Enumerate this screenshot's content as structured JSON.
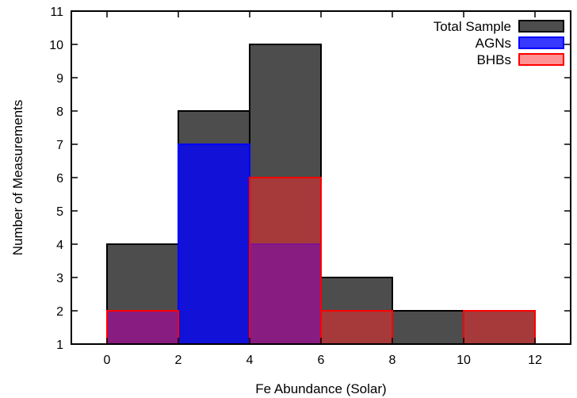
{
  "chart_data": {
    "type": "bar",
    "title": "",
    "xlabel": "Fe Abundance (Solar)",
    "ylabel": "Number of Measurements",
    "xlim": [
      -1,
      13
    ],
    "ylim": [
      1,
      11
    ],
    "xticks": [
      0,
      2,
      4,
      6,
      8,
      10,
      12
    ],
    "yticks": [
      1,
      2,
      3,
      4,
      5,
      6,
      7,
      8,
      9,
      10,
      11
    ],
    "grid": false,
    "legend_position": "top-right",
    "bin_edges": [
      0,
      2,
      4,
      6,
      8,
      10,
      12
    ],
    "series": [
      {
        "name": "Total Sample",
        "fill": "#4d4d4d",
        "stroke": "#000000",
        "bins": [
          {
            "x0": 0,
            "x1": 2,
            "value": 4
          },
          {
            "x0": 2,
            "x1": 4,
            "value": 8
          },
          {
            "x0": 4,
            "x1": 6,
            "value": 10
          },
          {
            "x0": 6,
            "x1": 8,
            "value": 3
          },
          {
            "x0": 8,
            "x1": 10,
            "value": 2
          },
          {
            "x0": 10,
            "x1": 12,
            "value": 2
          }
        ]
      },
      {
        "name": "AGNs",
        "fill": "rgba(0,0,255,0.78)",
        "stroke": "#0000ff",
        "bins": [
          {
            "x0": 0,
            "x1": 2,
            "value": 2
          },
          {
            "x0": 2,
            "x1": 4,
            "value": 7
          },
          {
            "x0": 4,
            "x1": 6,
            "value": 4
          }
        ]
      },
      {
        "name": "BHBs",
        "fill": "rgba(255,40,40,0.5)",
        "stroke": "#ff0000",
        "bins": [
          {
            "x0": 0,
            "x1": 2,
            "value": 2
          },
          {
            "x0": 4,
            "x1": 6,
            "value": 6
          },
          {
            "x0": 6,
            "x1": 8,
            "value": 2
          },
          {
            "x0": 10,
            "x1": 12,
            "value": 2
          }
        ]
      }
    ]
  }
}
